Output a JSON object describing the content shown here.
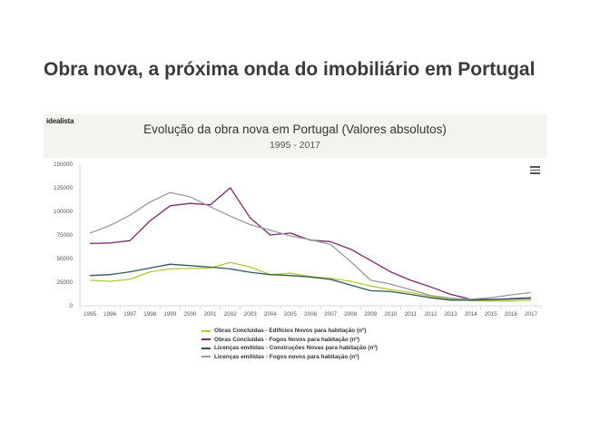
{
  "headline": "Obra nova, a próxima onda do imobiliário em Portugal",
  "logo_text": "idealista",
  "chart_data": {
    "type": "line",
    "title": "Evolução da obra nova em Portugal (Valores absolutos)",
    "subtitle": "1995 - 2017",
    "xlabel": "",
    "ylabel": "",
    "ylim": [
      0,
      150000
    ],
    "yticks": [
      0,
      25000,
      50000,
      75000,
      100000,
      125000,
      150000
    ],
    "ytick_labels": [
      "0",
      "25000",
      "50000",
      "75000",
      "100000",
      "125000",
      "150000"
    ],
    "categories": [
      "1995",
      "1996",
      "1997",
      "1998",
      "1999",
      "2000",
      "2001",
      "2002",
      "2003",
      "2004",
      "2005",
      "2006",
      "2007",
      "2008",
      "2009",
      "2010",
      "2011",
      "2012",
      "2013",
      "2014",
      "2015",
      "2016",
      "2017"
    ],
    "grid": false,
    "legend_position": "bottom",
    "series": [
      {
        "name": "Obras Concluídas - Edifícios Novos para habitação (nº)",
        "color": "#b5c934",
        "values": [
          27000,
          26000,
          28000,
          36000,
          39000,
          39500,
          40000,
          46000,
          41000,
          33000,
          34500,
          31000,
          29000,
          26000,
          21000,
          17000,
          14000,
          10000,
          7000,
          5500,
          5000,
          5000,
          6000
        ]
      },
      {
        "name": "Obras Concluídas - Fogos Novos para habitação (nº)",
        "color": "#7a2a6d",
        "values": [
          66000,
          66500,
          69000,
          90000,
          106000,
          108500,
          107000,
          125000,
          93000,
          75000,
          77000,
          69500,
          68000,
          60000,
          48000,
          36000,
          27000,
          20000,
          12000,
          7000,
          6500,
          7500,
          8500
        ]
      },
      {
        "name": "Licenças emitidas - Construções Novas para habitação (nº)",
        "color": "#2e5a55",
        "values": [
          32000,
          33000,
          36000,
          40000,
          44000,
          42500,
          41000,
          39000,
          35500,
          33000,
          32000,
          30500,
          28000,
          22000,
          16000,
          15000,
          12000,
          8500,
          6000,
          6000,
          6500,
          7000,
          8000
        ]
      },
      {
        "name": "Licenças emitidas - Fogos novos para habitação (nº)",
        "color": "#9a9a9a",
        "values": [
          77000,
          85000,
          96000,
          110000,
          120000,
          115500,
          105000,
          95000,
          86000,
          80000,
          74000,
          70000,
          65000,
          47000,
          27000,
          23000,
          17000,
          11000,
          8000,
          7000,
          8500,
          11500,
          14000
        ]
      }
    ]
  }
}
